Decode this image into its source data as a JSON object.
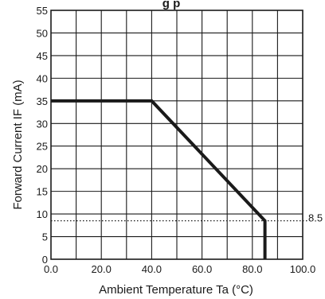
{
  "chart_data": {
    "type": "line",
    "title_fragment": "g  p",
    "xlabel": "Ambient Temperature Ta (°C)",
    "ylabel": "Forward Current IF (mA)",
    "xlim": [
      0,
      100
    ],
    "ylim": [
      0,
      55
    ],
    "x_ticks": [
      0,
      20,
      40,
      60,
      80,
      100
    ],
    "x_tick_labels": [
      "0.0",
      "20.0",
      "40.0",
      "60.0",
      "80.0",
      "100.0"
    ],
    "x_grid_step": 10,
    "y_ticks": [
      0,
      5,
      10,
      15,
      20,
      25,
      30,
      35,
      40,
      45,
      50,
      55
    ],
    "y_tick_labels": [
      "0",
      "5",
      "10",
      "15",
      "20",
      "25",
      "30",
      "35",
      "40",
      "45",
      "50",
      "55"
    ],
    "y_grid_step": 5,
    "grid": true,
    "series": [
      {
        "x": [
          0,
          40,
          85,
          85
        ],
        "y": [
          35,
          35,
          8.5,
          0
        ]
      }
    ],
    "reference_line": {
      "y": 8.5,
      "label": "8.5",
      "style": "dotted"
    }
  }
}
